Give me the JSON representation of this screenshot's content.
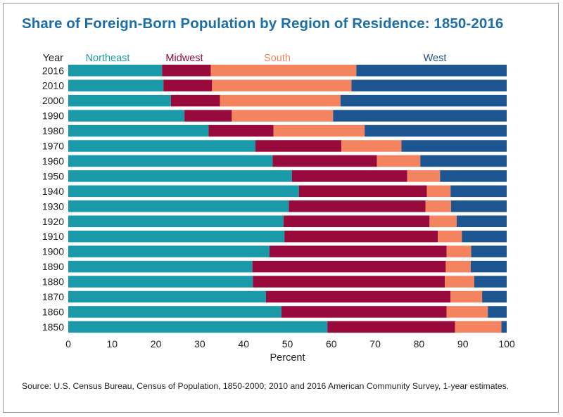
{
  "title": "Share of Foreign-Born Population by Region of Residence: 1850-2016",
  "source": "Source: U.S. Census Bureau, Census of Population, 1850-2000; 2010 and 2016 American Community Survey, 1-year estimates.",
  "colors": {
    "Northeast": "#1a9aa8",
    "Midwest": "#990a3c",
    "South": "#f4845f",
    "West": "#1c5590",
    "title": "#1d6fa8"
  },
  "chart_data": {
    "type": "bar",
    "orientation": "horizontal",
    "stacked": true,
    "title": "Share of Foreign-Born Population by Region of Residence: 1850-2016",
    "xlabel": "Percent",
    "ylabel": "Year",
    "xlim": [
      0,
      100
    ],
    "xticks": [
      "0",
      "10",
      "20",
      "30",
      "40",
      "50",
      "60",
      "70",
      "80",
      "90",
      "100"
    ],
    "grid": false,
    "legend": "top, inline with series columns",
    "categories": [
      "2016",
      "2010",
      "2000",
      "1990",
      "1980",
      "1970",
      "1960",
      "1950",
      "1940",
      "1930",
      "1920",
      "1910",
      "1900",
      "1890",
      "1880",
      "1870",
      "1860",
      "1850"
    ],
    "series": [
      {
        "name": "Northeast",
        "values": [
          21.4,
          21.7,
          23.4,
          26.5,
          32.0,
          42.7,
          46.6,
          51.0,
          52.6,
          50.3,
          49.1,
          49.3,
          45.9,
          42.0,
          42.1,
          45.1,
          48.6,
          59.1
        ]
      },
      {
        "name": "Midwest",
        "values": [
          11.1,
          11.1,
          11.2,
          10.8,
          14.8,
          19.6,
          23.8,
          26.3,
          29.2,
          31.2,
          33.3,
          35.0,
          40.4,
          44.1,
          43.8,
          42.1,
          37.7,
          29.1
        ]
      },
      {
        "name": "South",
        "values": [
          33.2,
          31.8,
          27.5,
          23.1,
          20.8,
          13.7,
          9.9,
          7.5,
          5.4,
          5.8,
          6.2,
          5.5,
          5.6,
          5.7,
          6.7,
          7.2,
          9.4,
          10.6
        ]
      },
      {
        "name": "West",
        "values": [
          34.3,
          35.4,
          37.9,
          39.6,
          32.4,
          24.0,
          19.7,
          15.2,
          12.8,
          12.7,
          11.4,
          10.2,
          8.1,
          8.2,
          7.4,
          5.6,
          4.3,
          1.2
        ]
      }
    ]
  }
}
